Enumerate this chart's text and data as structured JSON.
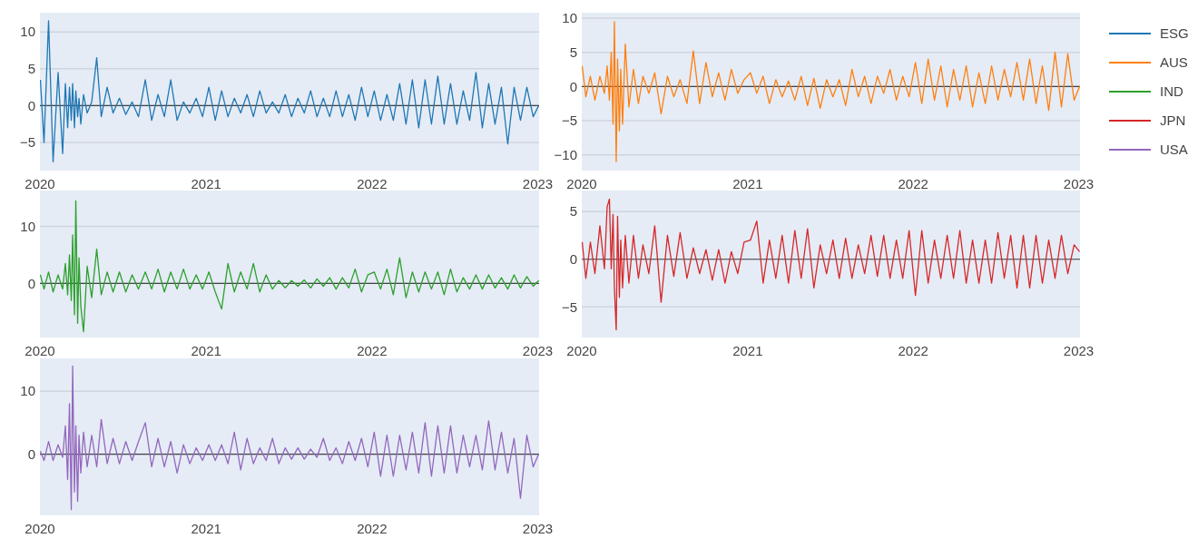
{
  "chart_data": [
    {
      "type": "line",
      "legend": "top right",
      "grid": "y",
      "xlim": [
        "2020-01-01",
        "2023-01-04"
      ],
      "xticks": [
        "2020",
        "2021",
        "2022",
        "2023"
      ],
      "ylim": [
        -8.8,
        12.6
      ],
      "yticks": [
        -5,
        0,
        5,
        10
      ],
      "ref_lines": [
        {
          "axis": "y",
          "value": 0,
          "color": "#444444"
        }
      ],
      "x": [
        "2020-01-02",
        "2020-01-10",
        "2020-01-20",
        "2020-01-30",
        "2020-02-10",
        "2020-02-20",
        "2020-02-26",
        "2020-03-02",
        "2020-03-06",
        "2020-03-10",
        "2020-03-13",
        "2020-03-17",
        "2020-03-20",
        "2020-03-24",
        "2020-03-27",
        "2020-03-31",
        "2020-04-06",
        "2020-04-14",
        "2020-04-24",
        "2020-05-05",
        "2020-05-15",
        "2020-05-28",
        "2020-06-10",
        "2020-06-24",
        "2020-07-08",
        "2020-07-22",
        "2020-08-05",
        "2020-08-20",
        "2020-09-03",
        "2020-09-17",
        "2020-10-01",
        "2020-10-15",
        "2020-10-29",
        "2020-11-12",
        "2020-11-26",
        "2020-12-10",
        "2020-12-24",
        "2021-01-07",
        "2021-01-21",
        "2021-02-04",
        "2021-02-18",
        "2021-03-04",
        "2021-03-18",
        "2021-04-01",
        "2021-04-15",
        "2021-04-29",
        "2021-05-13",
        "2021-05-27",
        "2021-06-10",
        "2021-06-24",
        "2021-07-08",
        "2021-07-22",
        "2021-08-05",
        "2021-08-19",
        "2021-09-02",
        "2021-09-16",
        "2021-09-30",
        "2021-10-14",
        "2021-10-28",
        "2021-11-11",
        "2021-11-25",
        "2021-12-09",
        "2021-12-23",
        "2022-01-06",
        "2022-01-20",
        "2022-02-03",
        "2022-02-17",
        "2022-03-03",
        "2022-03-17",
        "2022-03-31",
        "2022-04-14",
        "2022-04-28",
        "2022-05-12",
        "2022-05-26",
        "2022-06-09",
        "2022-06-23",
        "2022-07-07",
        "2022-07-21",
        "2022-08-04",
        "2022-08-18",
        "2022-09-01",
        "2022-09-15",
        "2022-09-29",
        "2022-10-13",
        "2022-10-27",
        "2022-11-10",
        "2022-11-24",
        "2022-12-08",
        "2022-12-22",
        "2023-01-03"
      ],
      "series": [
        {
          "name": "ESG",
          "color": "#1f77b4",
          "values": [
            3.5,
            -5,
            11.5,
            -7.6,
            4.5,
            -6.5,
            3,
            -3,
            2.5,
            -2,
            3,
            -3,
            2,
            -1.5,
            1,
            -2.5,
            1.5,
            -1,
            0.5,
            6.5,
            -1.5,
            2.5,
            -1,
            1,
            -1.2,
            0.5,
            -1.5,
            3.5,
            -2,
            1.5,
            -1.5,
            3.5,
            -2,
            0.5,
            -1,
            1,
            -1.5,
            2.5,
            -2,
            2,
            -1.5,
            1,
            -1,
            1.5,
            -1.5,
            2,
            -1,
            0.5,
            -1,
            1.5,
            -1.5,
            1,
            -1,
            2,
            -1.5,
            1,
            -1.5,
            2,
            -1.5,
            1.5,
            -2,
            2.5,
            -1.5,
            2,
            -2,
            1.5,
            -2,
            3,
            -2.5,
            3.5,
            -3,
            3.5,
            -2.5,
            4,
            -2.5,
            3,
            -2.5,
            2,
            -2,
            4.5,
            -3,
            3,
            -2.5,
            2.5,
            -5.2,
            2.5,
            -2,
            2.5,
            -1.5,
            0
          ]
        }
      ]
    },
    {
      "type": "line",
      "legend": "top right",
      "grid": "y",
      "xlim": [
        "2020-01-01",
        "2023-01-04"
      ],
      "xticks": [
        "2020",
        "2021",
        "2022",
        "2023"
      ],
      "ylim": [
        -12.3,
        10.8
      ],
      "yticks": [
        -10,
        -5,
        0,
        5,
        10
      ],
      "ref_lines": [
        {
          "axis": "y",
          "value": 0,
          "color": "#444444"
        }
      ],
      "x": [
        "2020-01-02",
        "2020-01-10",
        "2020-01-20",
        "2020-01-30",
        "2020-02-10",
        "2020-02-20",
        "2020-02-26",
        "2020-03-02",
        "2020-03-06",
        "2020-03-10",
        "2020-03-13",
        "2020-03-17",
        "2020-03-20",
        "2020-03-24",
        "2020-03-27",
        "2020-03-31",
        "2020-04-06",
        "2020-04-14",
        "2020-04-24",
        "2020-05-05",
        "2020-05-15",
        "2020-05-28",
        "2020-06-10",
        "2020-06-24",
        "2020-07-08",
        "2020-07-22",
        "2020-08-05",
        "2020-08-20",
        "2020-09-03",
        "2020-09-17",
        "2020-10-01",
        "2020-10-15",
        "2020-10-29",
        "2020-11-12",
        "2020-11-26",
        "2020-12-10",
        "2020-12-24",
        "2021-01-07",
        "2021-01-21",
        "2021-02-04",
        "2021-02-18",
        "2021-03-04",
        "2021-03-18",
        "2021-04-01",
        "2021-04-15",
        "2021-04-29",
        "2021-05-13",
        "2021-05-27",
        "2021-06-10",
        "2021-06-24",
        "2021-07-08",
        "2021-07-22",
        "2021-08-05",
        "2021-08-19",
        "2021-09-02",
        "2021-09-16",
        "2021-09-30",
        "2021-10-14",
        "2021-10-28",
        "2021-11-11",
        "2021-11-25",
        "2021-12-09",
        "2021-12-23",
        "2022-01-06",
        "2022-01-20",
        "2022-02-03",
        "2022-02-17",
        "2022-03-03",
        "2022-03-17",
        "2022-03-31",
        "2022-04-14",
        "2022-04-28",
        "2022-05-12",
        "2022-05-26",
        "2022-06-09",
        "2022-06-23",
        "2022-07-07",
        "2022-07-21",
        "2022-08-04",
        "2022-08-18",
        "2022-09-01",
        "2022-09-15",
        "2022-09-29",
        "2022-10-13",
        "2022-10-27",
        "2022-11-10",
        "2022-11-24",
        "2022-12-08",
        "2022-12-22",
        "2023-01-03"
      ],
      "series": [
        {
          "name": "AUS",
          "color": "#ff7f0e",
          "values": [
            3,
            -1.5,
            1.5,
            -2,
            1.5,
            -1,
            3,
            -2,
            5,
            -5.5,
            9.5,
            -11,
            4,
            -6.5,
            2.5,
            -5.5,
            6.2,
            -3,
            2.5,
            -2.5,
            1.5,
            -1,
            2,
            -4,
            1.5,
            -1.5,
            1,
            -2.5,
            5.2,
            -2.5,
            3.5,
            -1.5,
            2,
            -2,
            2.5,
            -1,
            1,
            2,
            -1,
            1.5,
            -2.5,
            1,
            -1.5,
            0.8,
            -2,
            1.5,
            -2.8,
            1.2,
            -3.2,
            1,
            -1.5,
            1,
            -2.8,
            2.5,
            -1.5,
            1.5,
            -2.5,
            1.5,
            -1,
            2.5,
            -2,
            1.5,
            -1.5,
            3.5,
            -2.5,
            4,
            -2,
            3,
            -3,
            2.5,
            -2,
            3,
            -3,
            2,
            -2.5,
            3,
            -2,
            2.5,
            -1.5,
            3.5,
            -2,
            4,
            -2.5,
            3,
            -3.5,
            5,
            -3,
            4.8,
            -2,
            0
          ]
        }
      ]
    },
    {
      "type": "line",
      "legend": "top right",
      "grid": "y",
      "xlim": [
        "2020-01-01",
        "2023-01-04"
      ],
      "xticks": [
        "2020",
        "2021",
        "2022",
        "2023"
      ],
      "ylim": [
        -9.5,
        16.3
      ],
      "yticks": [
        0,
        10
      ],
      "ref_lines": [
        {
          "axis": "y",
          "value": 0,
          "color": "#444444"
        }
      ],
      "x": [
        "2020-01-02",
        "2020-01-10",
        "2020-01-20",
        "2020-01-30",
        "2020-02-10",
        "2020-02-20",
        "2020-02-26",
        "2020-03-02",
        "2020-03-06",
        "2020-03-10",
        "2020-03-13",
        "2020-03-17",
        "2020-03-20",
        "2020-03-24",
        "2020-03-27",
        "2020-03-31",
        "2020-04-06",
        "2020-04-14",
        "2020-04-24",
        "2020-05-05",
        "2020-05-15",
        "2020-05-28",
        "2020-06-10",
        "2020-06-24",
        "2020-07-08",
        "2020-07-22",
        "2020-08-05",
        "2020-08-20",
        "2020-09-03",
        "2020-09-17",
        "2020-10-01",
        "2020-10-15",
        "2020-10-29",
        "2020-11-12",
        "2020-11-26",
        "2020-12-10",
        "2020-12-24",
        "2021-01-07",
        "2021-01-21",
        "2021-02-04",
        "2021-02-18",
        "2021-03-04",
        "2021-03-18",
        "2021-04-01",
        "2021-04-15",
        "2021-04-29",
        "2021-05-13",
        "2021-05-27",
        "2021-06-10",
        "2021-06-24",
        "2021-07-08",
        "2021-07-22",
        "2021-08-05",
        "2021-08-19",
        "2021-09-02",
        "2021-09-16",
        "2021-09-30",
        "2021-10-14",
        "2021-10-28",
        "2021-11-11",
        "2021-11-25",
        "2021-12-09",
        "2021-12-23",
        "2022-01-06",
        "2022-01-20",
        "2022-02-03",
        "2022-02-17",
        "2022-03-03",
        "2022-03-17",
        "2022-03-31",
        "2022-04-14",
        "2022-04-28",
        "2022-05-12",
        "2022-05-26",
        "2022-06-09",
        "2022-06-23",
        "2022-07-07",
        "2022-07-21",
        "2022-08-04",
        "2022-08-18",
        "2022-09-01",
        "2022-09-15",
        "2022-09-29",
        "2022-10-13",
        "2022-10-27",
        "2022-11-10",
        "2022-11-24",
        "2022-12-08",
        "2022-12-22",
        "2023-01-03"
      ],
      "series": [
        {
          "name": "IND",
          "color": "#2ca02c",
          "values": [
            1.5,
            -1,
            2,
            -1.5,
            1.5,
            -1,
            3.5,
            -2,
            5,
            -3,
            8.5,
            -5.5,
            14.5,
            -7,
            4.5,
            -4,
            -8.5,
            3,
            -2.5,
            6,
            -2,
            2,
            -1.5,
            2,
            -1.5,
            1.5,
            -1,
            2,
            -1,
            2.5,
            -1.5,
            2,
            -1,
            2.5,
            -1,
            1.5,
            -1,
            2,
            -1.5,
            -4.5,
            3.5,
            -1.5,
            2,
            -1,
            3.5,
            -1.5,
            1.5,
            -1,
            0.5,
            -0.8,
            0.5,
            -0.5,
            0.6,
            -0.8,
            0.8,
            -0.5,
            1,
            -1,
            1,
            -0.8,
            2.5,
            -1.5,
            1.5,
            2,
            -1,
            2.5,
            -2,
            4.5,
            -2.5,
            2,
            -1.5,
            2,
            -1,
            2,
            -2,
            2.5,
            -1.5,
            1,
            -1,
            1.5,
            -1,
            1.5,
            -0.8,
            1,
            -1,
            1.5,
            -0.8,
            1.2,
            -0.5,
            0.5
          ]
        }
      ]
    },
    {
      "type": "line",
      "legend": "top right",
      "grid": "y",
      "xlim": [
        "2020-01-01",
        "2023-01-04"
      ],
      "xticks": [
        "2020",
        "2021",
        "2022",
        "2023"
      ],
      "ylim": [
        -8.2,
        7.2
      ],
      "yticks": [
        -5,
        0,
        5
      ],
      "ref_lines": [
        {
          "axis": "y",
          "value": 0,
          "color": "#444444"
        }
      ],
      "x": [
        "2020-01-02",
        "2020-01-10",
        "2020-01-20",
        "2020-01-30",
        "2020-02-10",
        "2020-02-20",
        "2020-02-26",
        "2020-03-02",
        "2020-03-06",
        "2020-03-10",
        "2020-03-13",
        "2020-03-17",
        "2020-03-20",
        "2020-03-24",
        "2020-03-27",
        "2020-03-31",
        "2020-04-06",
        "2020-04-14",
        "2020-04-24",
        "2020-05-05",
        "2020-05-15",
        "2020-05-28",
        "2020-06-10",
        "2020-06-24",
        "2020-07-08",
        "2020-07-22",
        "2020-08-05",
        "2020-08-20",
        "2020-09-03",
        "2020-09-17",
        "2020-10-01",
        "2020-10-15",
        "2020-10-29",
        "2020-11-12",
        "2020-11-26",
        "2020-12-10",
        "2020-12-24",
        "2021-01-07",
        "2021-01-21",
        "2021-02-04",
        "2021-02-18",
        "2021-03-04",
        "2021-03-18",
        "2021-04-01",
        "2021-04-15",
        "2021-04-29",
        "2021-05-13",
        "2021-05-27",
        "2021-06-10",
        "2021-06-24",
        "2021-07-08",
        "2021-07-22",
        "2021-08-05",
        "2021-08-19",
        "2021-09-02",
        "2021-09-16",
        "2021-09-30",
        "2021-10-14",
        "2021-10-28",
        "2021-11-11",
        "2021-11-25",
        "2021-12-09",
        "2021-12-23",
        "2022-01-06",
        "2022-01-20",
        "2022-02-03",
        "2022-02-17",
        "2022-03-03",
        "2022-03-17",
        "2022-03-31",
        "2022-04-14",
        "2022-04-28",
        "2022-05-12",
        "2022-05-26",
        "2022-06-09",
        "2022-06-23",
        "2022-07-07",
        "2022-07-21",
        "2022-08-04",
        "2022-08-18",
        "2022-09-01",
        "2022-09-15",
        "2022-09-29",
        "2022-10-13",
        "2022-10-27",
        "2022-11-10",
        "2022-11-24",
        "2022-12-08",
        "2022-12-22",
        "2023-01-03"
      ],
      "series": [
        {
          "name": "JPN",
          "color": "#d62728",
          "values": [
            1.8,
            -2,
            1.8,
            -1.5,
            3.5,
            -1,
            5.5,
            6.3,
            -1,
            4.7,
            -3,
            -7.4,
            4.5,
            -4,
            2,
            -3,
            2.5,
            -2.5,
            2.5,
            -2,
            1.5,
            -1.5,
            3.5,
            -4.5,
            2.5,
            -1.8,
            2.8,
            -2,
            1.2,
            -1.5,
            1,
            -2.2,
            1,
            -2.5,
            0.8,
            -1.5,
            1.8,
            2,
            4,
            -2.5,
            2,
            -2,
            2.5,
            -2.5,
            3,
            -2,
            3.2,
            -3,
            1.5,
            -1.5,
            2,
            -2,
            2.2,
            -2,
            1.5,
            -1.5,
            2.5,
            -1.8,
            2.5,
            -2,
            2,
            -2,
            3,
            -3.8,
            3,
            -2.5,
            2,
            -2,
            2.5,
            -2,
            3,
            -2.5,
            2,
            -2.5,
            2,
            -2.5,
            2.8,
            -2,
            2.5,
            -3,
            2.5,
            -3,
            2.5,
            -2.5,
            2,
            -2,
            2.5,
            -1.5,
            1.5,
            0.8
          ]
        }
      ]
    },
    {
      "type": "line",
      "legend": "top right",
      "grid": "y",
      "xlim": [
        "2020-01-01",
        "2023-01-04"
      ],
      "xticks": [
        "2020",
        "2021",
        "2022",
        "2023"
      ],
      "ylim": [
        -9.7,
        15.2
      ],
      "yticks": [
        0,
        10
      ],
      "ref_lines": [
        {
          "axis": "y",
          "value": 0,
          "color": "#444444"
        }
      ],
      "x": [
        "2020-01-02",
        "2020-01-10",
        "2020-01-20",
        "2020-01-30",
        "2020-02-10",
        "2020-02-20",
        "2020-02-26",
        "2020-03-02",
        "2020-03-06",
        "2020-03-10",
        "2020-03-13",
        "2020-03-17",
        "2020-03-20",
        "2020-03-24",
        "2020-03-27",
        "2020-03-31",
        "2020-04-06",
        "2020-04-14",
        "2020-04-24",
        "2020-05-05",
        "2020-05-15",
        "2020-05-28",
        "2020-06-10",
        "2020-06-24",
        "2020-07-08",
        "2020-07-22",
        "2020-08-05",
        "2020-08-20",
        "2020-09-03",
        "2020-09-17",
        "2020-10-01",
        "2020-10-15",
        "2020-10-29",
        "2020-11-12",
        "2020-11-26",
        "2020-12-10",
        "2020-12-24",
        "2021-01-07",
        "2021-01-21",
        "2021-02-04",
        "2021-02-18",
        "2021-03-04",
        "2021-03-18",
        "2021-04-01",
        "2021-04-15",
        "2021-04-29",
        "2021-05-13",
        "2021-05-27",
        "2021-06-10",
        "2021-06-24",
        "2021-07-08",
        "2021-07-22",
        "2021-08-05",
        "2021-08-19",
        "2021-09-02",
        "2021-09-16",
        "2021-09-30",
        "2021-10-14",
        "2021-10-28",
        "2021-11-11",
        "2021-11-25",
        "2021-12-09",
        "2021-12-23",
        "2022-01-06",
        "2022-01-20",
        "2022-02-03",
        "2022-02-17",
        "2022-03-03",
        "2022-03-17",
        "2022-03-31",
        "2022-04-14",
        "2022-04-28",
        "2022-05-12",
        "2022-05-26",
        "2022-06-09",
        "2022-06-23",
        "2022-07-07",
        "2022-07-21",
        "2022-08-04",
        "2022-08-18",
        "2022-09-01",
        "2022-09-15",
        "2022-09-29",
        "2022-10-13",
        "2022-10-27",
        "2022-11-10",
        "2022-11-24",
        "2022-12-08",
        "2022-12-22",
        "2023-01-03"
      ],
      "series": [
        {
          "name": "USA",
          "color": "#9467bd",
          "values": [
            0.5,
            -1,
            2,
            -1,
            1.5,
            -0.5,
            4.5,
            -4,
            8,
            -8.8,
            14,
            -6,
            4.5,
            -7.5,
            3,
            -3,
            3.5,
            -2,
            3,
            -2,
            5.5,
            -1.5,
            2.5,
            -1.5,
            2,
            -1,
            2,
            5,
            -2,
            2.5,
            -2,
            2,
            -3,
            1.5,
            -1.5,
            1,
            -1,
            1.5,
            -1,
            1.5,
            -1.5,
            3.5,
            -2.5,
            2.5,
            -1.5,
            1,
            -1,
            2.5,
            -1.5,
            1,
            -0.8,
            1,
            -0.8,
            0.8,
            -0.5,
            2.5,
            -1,
            1,
            -1.5,
            2,
            -1,
            2.5,
            -2,
            3.5,
            -3.5,
            3,
            -3.5,
            3,
            -2.5,
            3.5,
            -3,
            5,
            -3.5,
            4.5,
            -3,
            4.5,
            -3,
            3,
            -2,
            3,
            -2.5,
            5.3,
            -2.5,
            3.5,
            -3,
            2.5,
            -7,
            3,
            -2,
            0
          ]
        }
      ]
    }
  ]
}
